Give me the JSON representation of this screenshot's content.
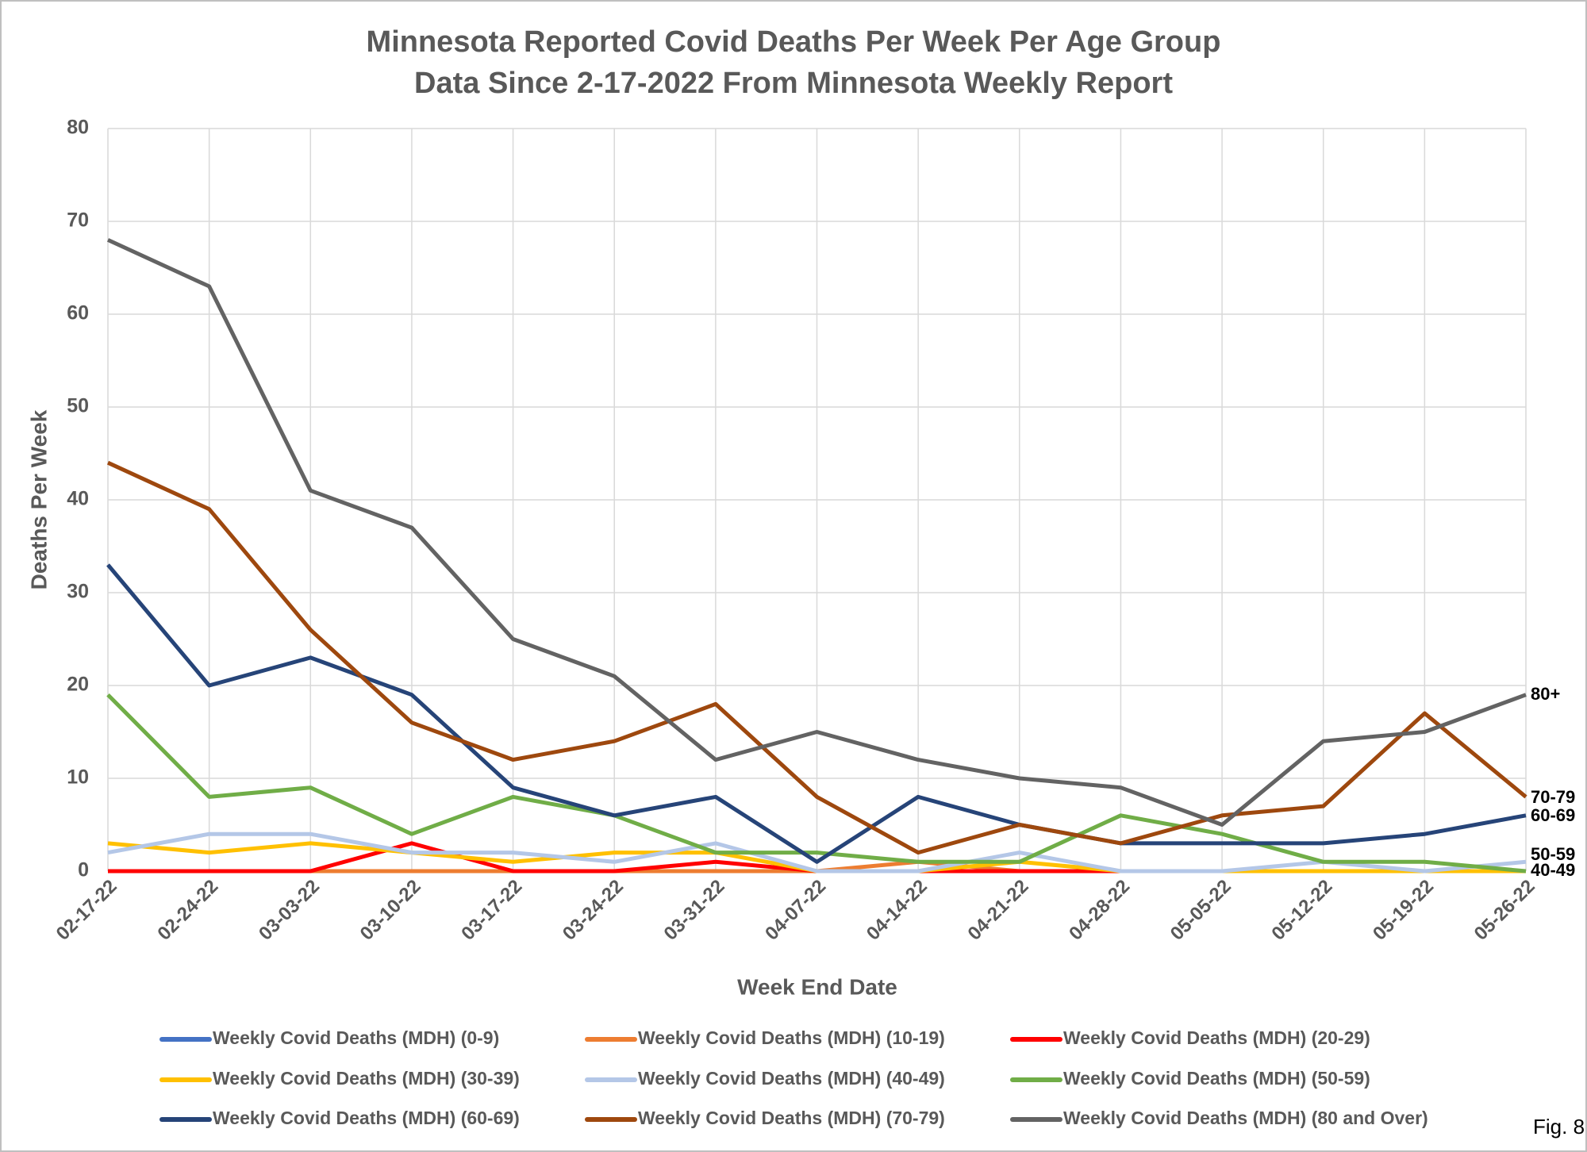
{
  "chart_data": {
    "type": "line",
    "title": "Minnesota Reported Covid Deaths Per Week Per Age Group",
    "subtitle": "Data Since 2-17-2022 From Minnesota Weekly Report",
    "x_label": "Week End Date",
    "y_label": "Deaths Per Week",
    "categories": [
      "02-17-22",
      "02-24-22",
      "03-03-22",
      "03-10-22",
      "03-17-22",
      "03-24-22",
      "03-31-22",
      "04-07-22",
      "04-14-22",
      "04-21-22",
      "04-28-22",
      "05-05-22",
      "05-12-22",
      "05-19-22",
      "05-26-22"
    ],
    "series": [
      {
        "name": "Weekly Covid Deaths (MDH) (0-9)",
        "color": "#4472c4",
        "values": [
          0,
          0,
          0,
          0,
          0,
          0,
          0,
          0,
          0,
          0,
          0,
          0,
          0,
          0,
          0
        ]
      },
      {
        "name": "Weekly Covid Deaths (MDH) (10-19)",
        "color": "#ed7d31",
        "values": [
          0,
          0,
          0,
          0,
          0,
          0,
          0,
          0,
          1,
          0,
          0,
          0,
          0,
          0,
          0
        ]
      },
      {
        "name": "Weekly Covid Deaths (MDH) (20-29)",
        "color": "#ff0000",
        "values": [
          0,
          0,
          0,
          3,
          0,
          0,
          1,
          0,
          0,
          0,
          0,
          0,
          0,
          0,
          0
        ]
      },
      {
        "name": "Weekly Covid Deaths (MDH) (30-39)",
        "color": "#ffc000",
        "values": [
          3,
          2,
          3,
          2,
          1,
          2,
          2,
          0,
          0,
          1,
          0,
          0,
          0,
          0,
          0
        ]
      },
      {
        "name": "Weekly Covid Deaths (MDH) (40-49)",
        "color": "#b4c7e7",
        "values": [
          2,
          4,
          4,
          2,
          2,
          1,
          3,
          0,
          0,
          2,
          0,
          0,
          1,
          0,
          1
        ]
      },
      {
        "name": "Weekly Covid Deaths (MDH) (50-59)",
        "color": "#70ad47",
        "values": [
          19,
          8,
          9,
          4,
          8,
          6,
          2,
          2,
          1,
          1,
          6,
          4,
          1,
          1,
          0
        ]
      },
      {
        "name": "Weekly Covid Deaths (MDH) (60-69)",
        "color": "#264478",
        "values": [
          33,
          20,
          23,
          19,
          9,
          6,
          8,
          1,
          8,
          5,
          3,
          3,
          3,
          4,
          6
        ]
      },
      {
        "name": "Weekly Covid Deaths (MDH) (70-79)",
        "color": "#9e480e",
        "values": [
          44,
          39,
          26,
          16,
          12,
          14,
          18,
          8,
          2,
          5,
          3,
          6,
          7,
          17,
          8
        ]
      },
      {
        "name": "Weekly Covid Deaths (MDH) (80 and Over)",
        "color": "#636363",
        "values": [
          68,
          63,
          41,
          37,
          25,
          21,
          12,
          15,
          12,
          10,
          9,
          5,
          14,
          15,
          19
        ]
      }
    ],
    "annotations": [
      "80+",
      "70-79",
      "60-69",
      "50-59",
      "40-49"
    ],
    "figure_label": "Fig. 8",
    "ylim": [
      0,
      80
    ],
    "yticks": [
      0,
      10,
      20,
      30,
      40,
      50,
      60,
      70,
      80
    ],
    "grid": true
  }
}
